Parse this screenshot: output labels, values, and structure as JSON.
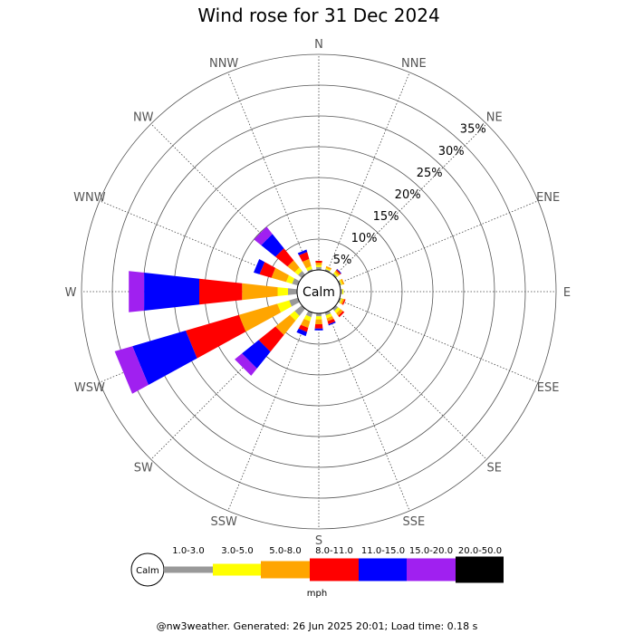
{
  "chart_data": {
    "type": "wind-rose",
    "title": "Wind rose for 31 Dec 2024",
    "directions": [
      "N",
      "NNE",
      "NE",
      "ENE",
      "E",
      "ESE",
      "SE",
      "SSE",
      "S",
      "SSW",
      "SW",
      "WSW",
      "W",
      "WNW",
      "NW",
      "NNW"
    ],
    "rings_percent": [
      5,
      10,
      15,
      20,
      25,
      30,
      35
    ],
    "ring_labels": [
      "5%",
      "10%",
      "15%",
      "20%",
      "25%",
      "30%",
      "35%"
    ],
    "max_percent": 35,
    "calm_label": "Calm",
    "speed_unit": "mph",
    "speed_bins": [
      "1.0-3.0",
      "3.0-5.0",
      "5.0-8.0",
      "8.0-11.0",
      "11.0-15.0",
      "15.0-20.0",
      "20.0-50.0"
    ],
    "bin_colors": [
      "#999999",
      "#ffff00",
      "#ffa500",
      "#ff0000",
      "#0000ff",
      "#a020f0",
      "#000000"
    ],
    "cumulative_percent": {
      "N": [
        0.5,
        0.8,
        1.2,
        1.5,
        1.5,
        1.5,
        1.5
      ],
      "NNE": [
        0.3,
        0.5,
        0.8,
        0.8,
        0.8,
        0.8,
        0.8
      ],
      "NE": [
        0.3,
        0.6,
        0.9,
        1.1,
        1.2,
        1.2,
        1.2
      ],
      "ENE": [
        0.3,
        0.5,
        0.8,
        0.8,
        0.8,
        0.8,
        0.8
      ],
      "E": [
        0.3,
        0.5,
        0.5,
        0.5,
        0.5,
        0.5,
        0.5
      ],
      "ESE": [
        0.3,
        0.5,
        0.8,
        1.0,
        1.0,
        1.0,
        1.0
      ],
      "SE": [
        0.5,
        1.0,
        1.5,
        1.8,
        1.8,
        1.8,
        1.8
      ],
      "SSE": [
        0.5,
        1.0,
        1.5,
        2.0,
        2.2,
        2.2,
        2.2
      ],
      "S": [
        0.5,
        1.0,
        1.8,
        2.5,
        2.8,
        2.8,
        2.8
      ],
      "SSW": [
        0.8,
        1.5,
        2.6,
        3.3,
        4.0,
        4.0,
        4.0
      ],
      "SW": [
        1.5,
        2.5,
        5.5,
        9.0,
        12.5,
        14.0,
        14.0
      ],
      "WSW": [
        1.5,
        3.5,
        10.0,
        19.0,
        28.0,
        31.0,
        31.0
      ],
      "W": [
        1.5,
        3.2,
        9.0,
        16.0,
        25.0,
        27.5,
        27.5
      ],
      "WNW": [
        1.0,
        2.0,
        4.5,
        6.5,
        7.5,
        7.5,
        7.5
      ],
      "NW": [
        0.8,
        1.5,
        3.0,
        5.5,
        8.5,
        10.0,
        10.0
      ],
      "NNW": [
        0.3,
        0.8,
        2.0,
        3.2,
        3.6,
        3.6,
        3.6
      ]
    }
  },
  "footer": "@nw3weather. Generated: 26 Jun 2025 20:01; Load time: 0.18 s"
}
